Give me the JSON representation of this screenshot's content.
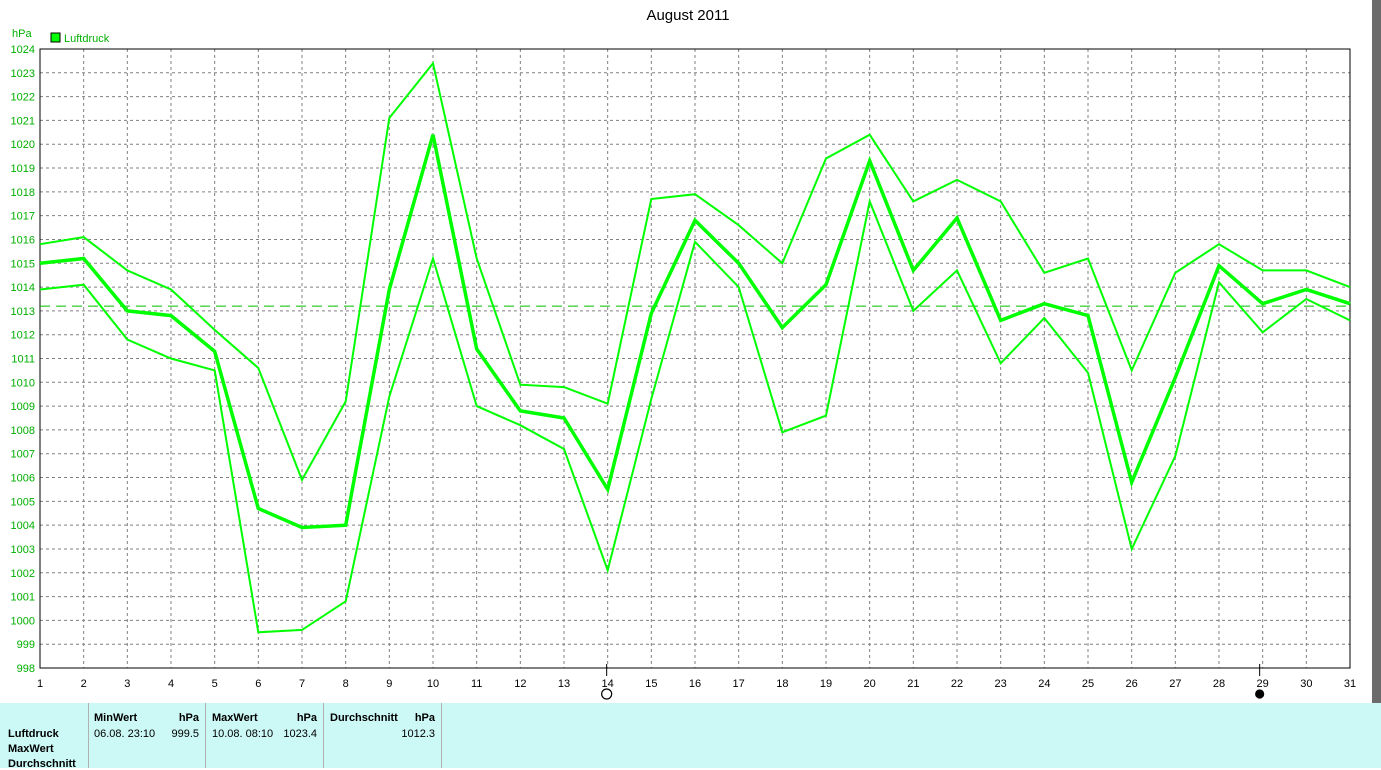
{
  "chart_data": {
    "type": "line",
    "title": "August 2011",
    "ylabel": "hPa",
    "ylim": [
      998,
      1024
    ],
    "xlim": [
      1,
      31
    ],
    "grid": true,
    "legend_position": "top-left",
    "x": [
      1,
      2,
      3,
      4,
      5,
      6,
      7,
      8,
      9,
      10,
      11,
      12,
      13,
      14,
      15,
      16,
      17,
      18,
      19,
      20,
      21,
      22,
      23,
      24,
      25,
      26,
      27,
      28,
      29,
      30,
      31
    ],
    "x_tick_labels": [
      "1",
      "2",
      "3",
      "4",
      "5",
      "6",
      "7",
      "8",
      "9",
      "10",
      "11",
      "12",
      "13",
      "14",
      "15",
      "16",
      "17",
      "18",
      "19",
      "20",
      "21",
      "22",
      "23",
      "24",
      "25",
      "26",
      "27",
      "28",
      "29",
      "30",
      "31"
    ],
    "y_tick_labels": [
      "998",
      "999",
      "1000",
      "1001",
      "1002",
      "1003",
      "1004",
      "1005",
      "1006",
      "1007",
      "1008",
      "1009",
      "1010",
      "1011",
      "1012",
      "1013",
      "1014",
      "1015",
      "1016",
      "1017",
      "1018",
      "1019",
      "1020",
      "1021",
      "1022",
      "1023",
      "1024"
    ],
    "legend": [
      {
        "label": "Luftdruck",
        "color": "#00ff00"
      }
    ],
    "series_max": [
      1015.8,
      1016.1,
      1014.7,
      1013.9,
      1012.2,
      1010.6,
      1005.9,
      1009.2,
      1021.1,
      1023.4,
      1015.2,
      1009.9,
      1009.8,
      1009.1,
      1017.7,
      1017.9,
      1016.6,
      1015.0,
      1019.4,
      1020.4,
      1017.6,
      1018.5,
      1017.6,
      1014.6,
      1015.2,
      1010.5,
      1014.6,
      1015.8,
      1014.7,
      1014.7,
      1014.0
    ],
    "series_avg": [
      1015.0,
      1015.2,
      1013.0,
      1012.8,
      1011.3,
      1004.7,
      1003.9,
      1004.0,
      1013.9,
      1020.4,
      1011.4,
      1008.8,
      1008.5,
      1005.5,
      1012.9,
      1016.8,
      1015.0,
      1012.3,
      1014.1,
      1019.3,
      1014.7,
      1016.9,
      1012.6,
      1013.3,
      1012.8,
      1005.8,
      1010.2,
      1014.9,
      1013.3,
      1013.9,
      1013.3
    ],
    "series_min": [
      1013.9,
      1014.1,
      1011.8,
      1011.0,
      1010.5,
      999.5,
      999.6,
      1000.8,
      1009.4,
      1015.2,
      1009.0,
      1008.2,
      1007.2,
      1002.1,
      1009.3,
      1015.9,
      1014.0,
      1007.9,
      1008.6,
      1017.6,
      1013.0,
      1014.7,
      1010.8,
      1012.7,
      1010.4,
      1003.0,
      1006.9,
      1014.2,
      1012.1,
      1013.5,
      1012.6
    ],
    "average_line": 1013.2,
    "moon_phases": [
      {
        "day": 14,
        "phase": "full-moon"
      },
      {
        "day": 29,
        "phase": "new-moon"
      }
    ]
  },
  "colors": {
    "series": "#00ff00",
    "average_line": "#00c000",
    "axis_labels": "#00b000",
    "x_labels": "#000000",
    "footer_bg": "#ccf8f6"
  },
  "footer": {
    "row_labels": [
      "Luftdruck",
      "MaxWert",
      "Durchschnitt"
    ],
    "min": {
      "header": "MinWert",
      "unit": "hPa",
      "datetime": "06.08.  23:10",
      "value": "999.5"
    },
    "max": {
      "header": "MaxWert",
      "unit": "hPa",
      "datetime": "10.08.  08:10",
      "value": "1023.4"
    },
    "avg": {
      "header": "Durchschnitt",
      "unit": "hPa",
      "value": "1012.3"
    }
  }
}
